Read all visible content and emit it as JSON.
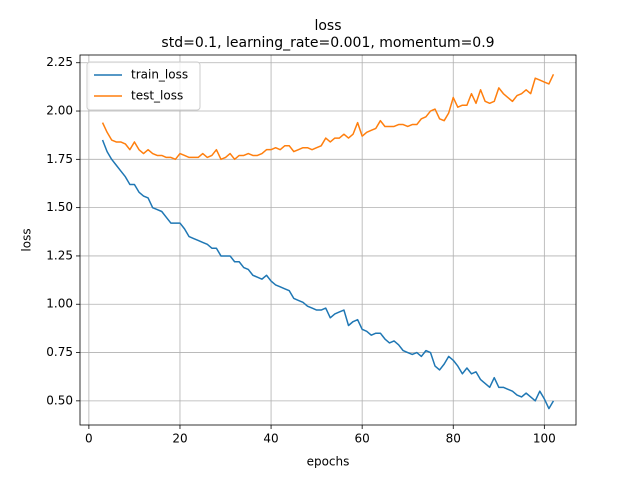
{
  "chart_data": {
    "type": "line",
    "title": "loss",
    "subtitle": "std=0.1, learning_rate=0.001, momentum=0.9",
    "x_label": "epochs",
    "y_label": "loss",
    "x": [
      3,
      4,
      5,
      6,
      7,
      8,
      9,
      10,
      11,
      12,
      13,
      14,
      15,
      16,
      17,
      18,
      19,
      20,
      21,
      22,
      23,
      24,
      25,
      26,
      27,
      28,
      29,
      30,
      31,
      32,
      33,
      34,
      35,
      36,
      37,
      38,
      39,
      40,
      41,
      42,
      43,
      44,
      45,
      46,
      47,
      48,
      49,
      50,
      51,
      52,
      53,
      54,
      55,
      56,
      57,
      58,
      59,
      60,
      61,
      62,
      63,
      64,
      65,
      66,
      67,
      68,
      69,
      70,
      71,
      72,
      73,
      74,
      75,
      76,
      77,
      78,
      79,
      80,
      81,
      82,
      83,
      84,
      85,
      86,
      87,
      88,
      89,
      90,
      91,
      92,
      93,
      94,
      95,
      96,
      97,
      98,
      99,
      100,
      101,
      102
    ],
    "series": [
      {
        "name": "train_loss",
        "color": "#1f77b4",
        "values": [
          1.85,
          1.79,
          1.75,
          1.72,
          1.69,
          1.66,
          1.62,
          1.62,
          1.58,
          1.56,
          1.55,
          1.5,
          1.49,
          1.48,
          1.45,
          1.42,
          1.42,
          1.42,
          1.39,
          1.35,
          1.34,
          1.33,
          1.32,
          1.31,
          1.29,
          1.29,
          1.25,
          1.25,
          1.25,
          1.22,
          1.22,
          1.19,
          1.18,
          1.15,
          1.14,
          1.13,
          1.15,
          1.12,
          1.1,
          1.09,
          1.08,
          1.07,
          1.03,
          1.02,
          1.01,
          0.99,
          0.98,
          0.97,
          0.97,
          0.98,
          0.93,
          0.95,
          0.96,
          0.97,
          0.89,
          0.91,
          0.92,
          0.87,
          0.86,
          0.84,
          0.85,
          0.85,
          0.82,
          0.8,
          0.81,
          0.79,
          0.76,
          0.75,
          0.74,
          0.75,
          0.73,
          0.76,
          0.75,
          0.68,
          0.66,
          0.69,
          0.73,
          0.71,
          0.68,
          0.64,
          0.67,
          0.64,
          0.65,
          0.61,
          0.59,
          0.57,
          0.62,
          0.57,
          0.57,
          0.56,
          0.55,
          0.53,
          0.52,
          0.54,
          0.52,
          0.5,
          0.55,
          0.51,
          0.46,
          0.5
        ]
      },
      {
        "name": "test_loss",
        "color": "#ff7f0e",
        "values": [
          1.94,
          1.89,
          1.85,
          1.84,
          1.84,
          1.83,
          1.8,
          1.84,
          1.8,
          1.78,
          1.8,
          1.78,
          1.77,
          1.77,
          1.76,
          1.76,
          1.75,
          1.78,
          1.77,
          1.76,
          1.76,
          1.76,
          1.78,
          1.76,
          1.77,
          1.8,
          1.75,
          1.76,
          1.78,
          1.75,
          1.77,
          1.77,
          1.78,
          1.77,
          1.77,
          1.78,
          1.8,
          1.8,
          1.81,
          1.8,
          1.82,
          1.82,
          1.79,
          1.8,
          1.81,
          1.81,
          1.8,
          1.81,
          1.82,
          1.86,
          1.84,
          1.86,
          1.86,
          1.88,
          1.86,
          1.88,
          1.94,
          1.87,
          1.89,
          1.9,
          1.91,
          1.95,
          1.92,
          1.92,
          1.92,
          1.93,
          1.93,
          1.92,
          1.93,
          1.93,
          1.96,
          1.97,
          2.0,
          2.01,
          1.96,
          1.95,
          1.99,
          2.07,
          2.02,
          2.03,
          2.03,
          2.09,
          2.04,
          2.11,
          2.05,
          2.04,
          2.05,
          2.12,
          2.09,
          2.07,
          2.05,
          2.08,
          2.09,
          2.11,
          2.09,
          2.17,
          2.16,
          2.15,
          2.14,
          2.19
        ]
      }
    ],
    "xlim": [
      -1.95,
      106.95
    ],
    "xticks": [
      0,
      20,
      40,
      60,
      80,
      100
    ],
    "ylim": [
      0.375,
      2.29
    ],
    "yticks": [
      {
        "value": 0.5,
        "label": "0.50"
      },
      {
        "value": 0.75,
        "label": "0.75"
      },
      {
        "value": 1.0,
        "label": "1.00"
      },
      {
        "value": 1.25,
        "label": "1.25"
      },
      {
        "value": 1.5,
        "label": "1.50"
      },
      {
        "value": 1.75,
        "label": "1.75"
      },
      {
        "value": 2.0,
        "label": "2.00"
      },
      {
        "value": 2.25,
        "label": "2.25"
      }
    ],
    "grid": true,
    "legend": "upper left"
  }
}
